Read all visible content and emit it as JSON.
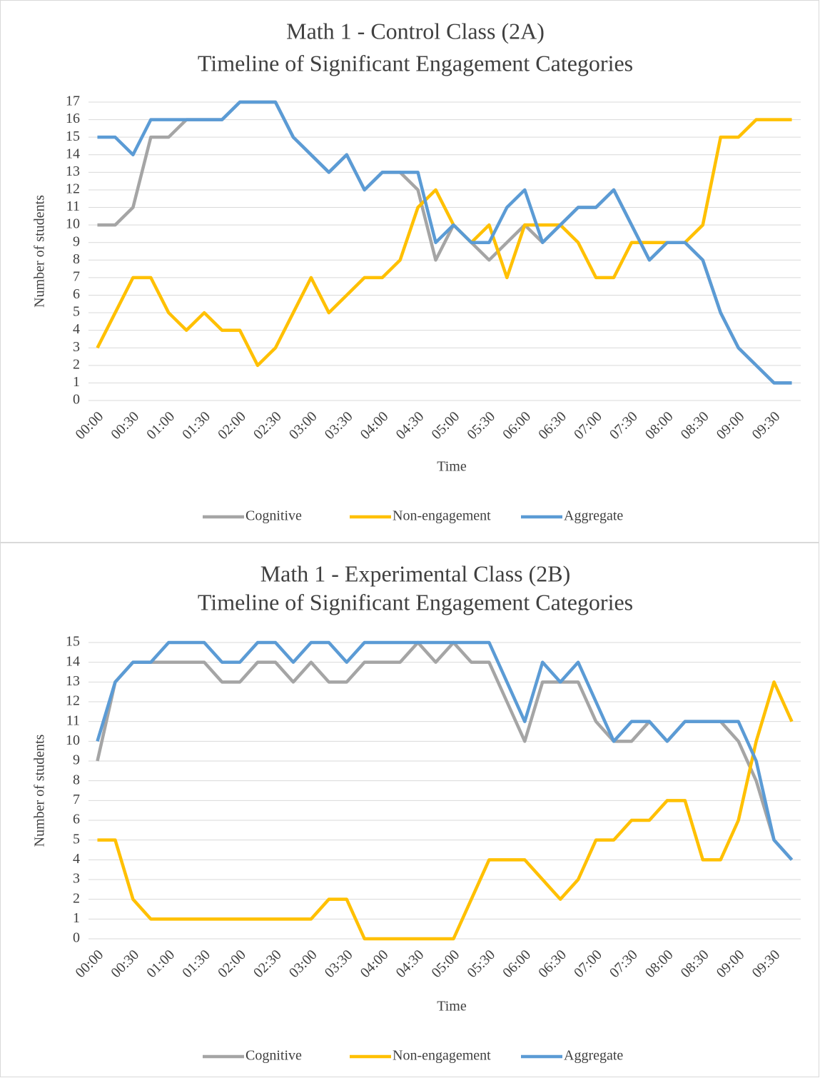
{
  "chart_data": [
    {
      "type": "line",
      "title": "Math 1 - Control Class (2A)",
      "subtitle": "Timeline of Significant Engagement Categories",
      "x_label": "Time",
      "y_label": "Number of students",
      "categories": [
        "00:00",
        null,
        "00:30",
        null,
        "01:00",
        null,
        "01:30",
        null,
        "02:00",
        null,
        "02:30",
        null,
        "03:00",
        null,
        "03:30",
        null,
        "04:00",
        null,
        "04:30",
        null,
        "05:00",
        null,
        "05:30",
        null,
        "06:00",
        null,
        "06:30",
        null,
        "07:00",
        null,
        "07:30",
        null,
        "08:00",
        null,
        "08:30",
        null,
        "09:00",
        null,
        "09:30",
        null
      ],
      "ylim": [
        0,
        17
      ],
      "yticks": [
        0,
        1,
        2,
        3,
        4,
        5,
        6,
        7,
        8,
        9,
        10,
        11,
        12,
        13,
        14,
        15,
        16,
        17
      ],
      "grid": true,
      "legend": "bottom",
      "series": [
        {
          "name": "Cognitive",
          "color": "#a5a5a5",
          "values": [
            10,
            10,
            11,
            15,
            15,
            16,
            16,
            16,
            17,
            17,
            17,
            15,
            14,
            13,
            14,
            12,
            13,
            13,
            12,
            8,
            10,
            9,
            8,
            9,
            10,
            9,
            10,
            11,
            11,
            12,
            10,
            8,
            9,
            9,
            8,
            5,
            3,
            2,
            1,
            1
          ]
        },
        {
          "name": "Non-engagement",
          "color": "#ffc000",
          "values": [
            3,
            5,
            7,
            7,
            5,
            4,
            5,
            4,
            4,
            2,
            3,
            5,
            7,
            5,
            6,
            7,
            7,
            8,
            11,
            12,
            10,
            9,
            10,
            7,
            10,
            10,
            10,
            9,
            7,
            7,
            9,
            9,
            9,
            9,
            10,
            15,
            15,
            16,
            16,
            16
          ]
        },
        {
          "name": "Aggregate",
          "color": "#5b9bd5",
          "values": [
            15,
            15,
            14,
            16,
            16,
            16,
            16,
            16,
            17,
            17,
            17,
            15,
            14,
            13,
            14,
            12,
            13,
            13,
            13,
            9,
            10,
            9,
            9,
            11,
            12,
            9,
            10,
            11,
            11,
            12,
            10,
            8,
            9,
            9,
            8,
            5,
            3,
            2,
            1,
            1
          ]
        }
      ]
    },
    {
      "type": "line",
      "title": "Math 1 - Experimental Class (2B)",
      "subtitle": "Timeline of Significant Engagement Categories",
      "x_label": "Time",
      "y_label": "Number of students",
      "categories": [
        "00:00",
        null,
        "00:30",
        null,
        "01:00",
        null,
        "01:30",
        null,
        "02:00",
        null,
        "02:30",
        null,
        "03:00",
        null,
        "03:30",
        null,
        "04:00",
        null,
        "04:30",
        null,
        "05:00",
        null,
        "05:30",
        null,
        "06:00",
        null,
        "06:30",
        null,
        "07:00",
        null,
        "07:30",
        null,
        "08:00",
        null,
        "08:30",
        null,
        "09:00",
        null,
        "09:30",
        null
      ],
      "ylim": [
        0,
        15
      ],
      "yticks": [
        0,
        1,
        2,
        3,
        4,
        5,
        6,
        7,
        8,
        9,
        10,
        11,
        12,
        13,
        14,
        15
      ],
      "grid": true,
      "legend": "bottom",
      "series": [
        {
          "name": "Cognitive",
          "color": "#a5a5a5",
          "values": [
            9,
            13,
            14,
            14,
            14,
            14,
            14,
            13,
            13,
            14,
            14,
            13,
            14,
            13,
            13,
            14,
            14,
            14,
            15,
            14,
            15,
            14,
            14,
            12,
            10,
            13,
            13,
            13,
            11,
            10,
            10,
            11,
            10,
            11,
            11,
            11,
            10,
            8,
            5,
            4
          ]
        },
        {
          "name": "Non-engagement",
          "color": "#ffc000",
          "values": [
            5,
            5,
            2,
            1,
            1,
            1,
            1,
            1,
            1,
            1,
            1,
            1,
            1,
            2,
            2,
            0,
            0,
            0,
            0,
            0,
            0,
            2,
            4,
            4,
            4,
            3,
            2,
            3,
            5,
            5,
            6,
            6,
            7,
            7,
            4,
            4,
            6,
            10,
            13,
            11
          ]
        },
        {
          "name": "Aggregate",
          "color": "#5b9bd5",
          "values": [
            10,
            13,
            14,
            14,
            15,
            15,
            15,
            14,
            14,
            15,
            15,
            14,
            15,
            15,
            14,
            15,
            15,
            15,
            15,
            15,
            15,
            15,
            15,
            13,
            11,
            14,
            13,
            14,
            12,
            10,
            11,
            11,
            10,
            11,
            11,
            11,
            11,
            9,
            5,
            4
          ]
        }
      ]
    }
  ]
}
